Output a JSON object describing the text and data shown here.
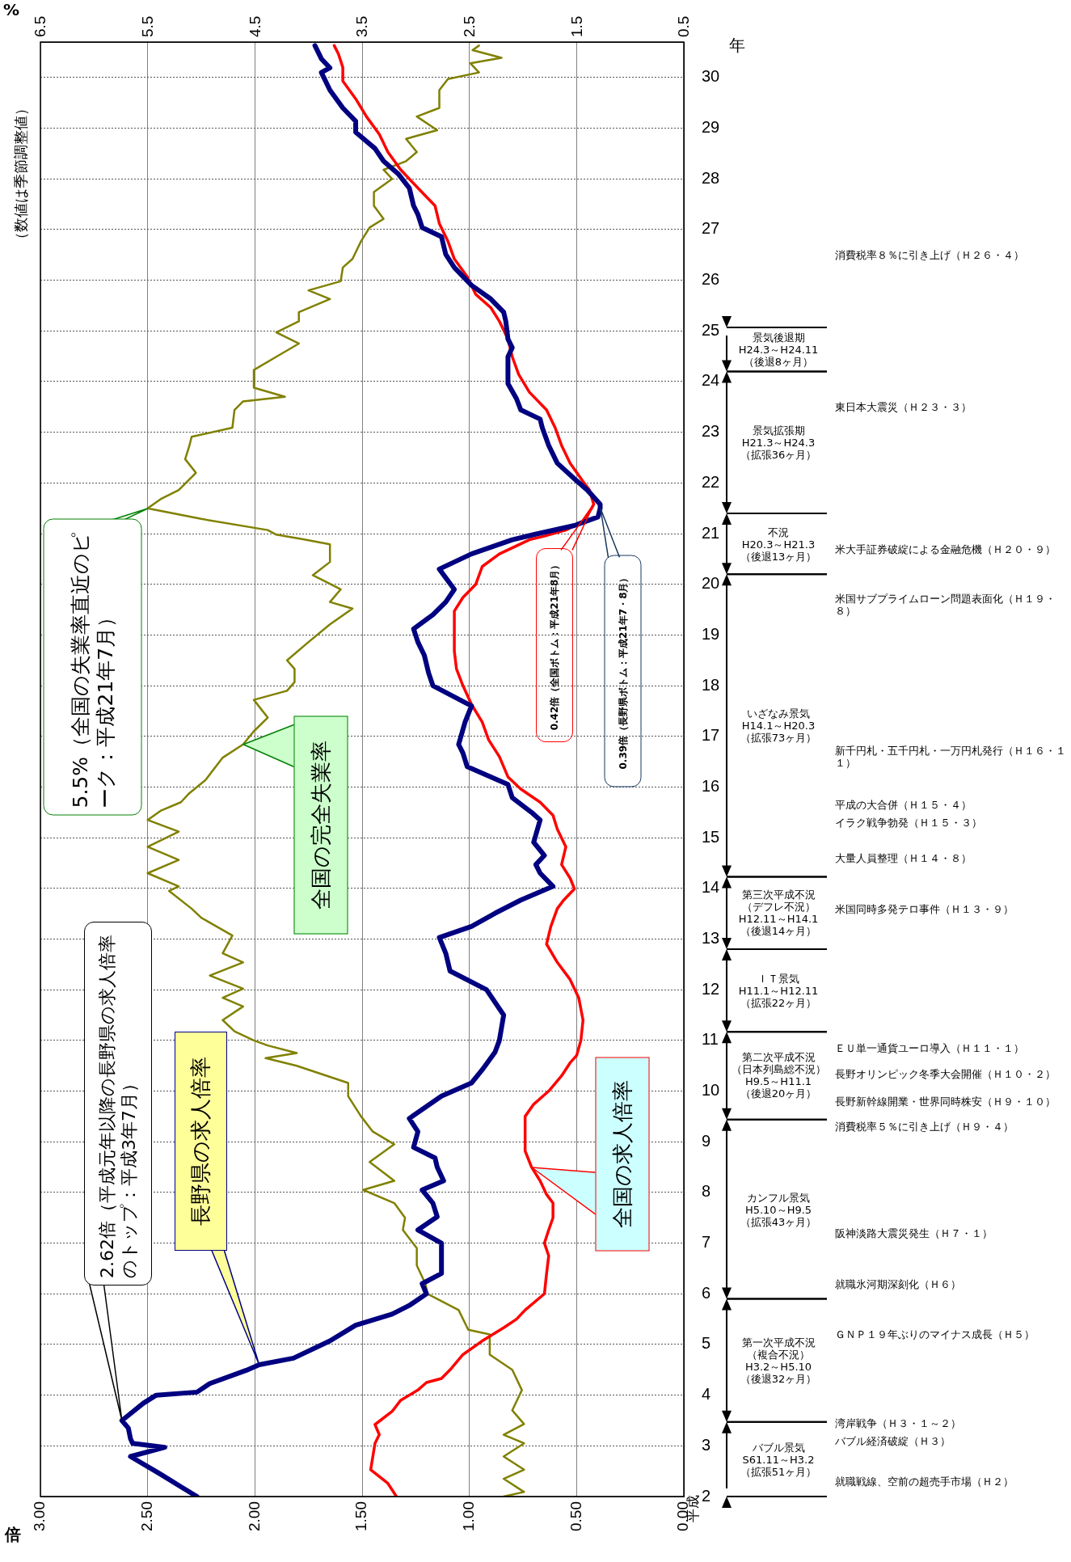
{
  "chart_data": {
    "type": "line",
    "xlabel": "倍",
    "x2label": "%",
    "ylabel": "年",
    "xlim": [
      3,
      0
    ],
    "xticks": [
      {
        "value": 0,
        "label": "0.00"
      },
      {
        "value": 0.5,
        "label": "0.50"
      },
      {
        "value": 1,
        "label": "1.00"
      },
      {
        "value": 1.5,
        "label": "1.50"
      },
      {
        "value": 2,
        "label": "2.00"
      },
      {
        "value": 2.5,
        "label": "2.50"
      },
      {
        "value": 3,
        "label": "3.00"
      }
    ],
    "x2lim": [
      6.5,
      0.5
    ],
    "x2ticks": [
      0.5,
      1.5,
      2.5,
      3.5,
      4.5,
      5.5,
      6.5
    ],
    "ylim": [
      2,
      30.7
    ],
    "yticks": [
      2,
      3,
      4,
      5,
      6,
      7,
      8,
      9,
      10,
      11,
      12,
      13,
      14,
      15,
      16,
      17,
      18,
      19,
      20,
      21,
      22,
      23,
      24,
      25,
      26,
      27,
      28,
      29,
      30
    ],
    "grid": true,
    "series": [
      {
        "name": "長野県の求人倍率",
        "color": "#000080",
        "x": [
          2.27,
          2.34,
          2.44,
          2.58,
          2.42,
          2.57,
          2.58,
          2.59,
          2.62,
          2.52,
          2.46,
          2.27,
          2.21,
          2.04,
          1.98,
          1.82,
          1.65,
          1.53,
          1.36,
          1.28,
          1.2,
          1.22,
          1.13,
          1.13,
          1.24,
          1.15,
          1.17,
          1.22,
          1.12,
          1.15,
          1.16,
          1.26,
          1.24,
          1.28,
          1.13,
          0.99,
          0.94,
          0.88,
          0.86,
          0.84,
          0.92,
          1.09,
          1.11,
          1.14,
          0.99,
          0.88,
          0.76,
          0.61,
          0.67,
          0.69,
          0.65,
          0.7,
          0.67,
          0.71,
          0.8,
          0.82,
          1.01,
          1.03,
          1.05,
          1.02,
          0.99,
          1.17,
          1.19,
          1.21,
          1.24,
          1.26,
          1.17,
          1.11,
          1.07,
          1.14,
          0.99,
          0.8,
          0.7,
          0.51,
          0.4,
          0.39,
          0.39,
          0.45,
          0.51,
          0.59,
          0.63,
          0.66,
          0.67,
          0.76,
          0.78,
          0.82,
          0.82,
          0.8,
          0.82,
          0.83,
          0.84,
          0.9,
          0.99,
          1.07,
          1.11,
          1.13,
          1.22,
          1.24,
          1.26,
          1.28,
          1.33,
          1.4,
          1.44,
          1.53,
          1.53,
          1.59,
          1.65,
          1.69,
          1.65,
          1.69,
          1.72
        ],
        "values": [
          2.0,
          2.18,
          2.44,
          2.79,
          2.97,
          3.05,
          3.14,
          3.35,
          3.5,
          3.84,
          4.0,
          4.06,
          4.23,
          4.49,
          4.6,
          4.73,
          5.07,
          5.38,
          5.6,
          5.77,
          6.0,
          6.2,
          6.4,
          7.0,
          7.26,
          7.52,
          7.79,
          8.05,
          8.23,
          8.5,
          8.68,
          8.89,
          9.2,
          9.46,
          9.9,
          10.16,
          10.42,
          10.77,
          11.0,
          11.5,
          12.0,
          12.37,
          12.72,
          13.03,
          13.25,
          13.51,
          13.77,
          14.04,
          14.3,
          14.47,
          14.65,
          14.91,
          15.35,
          15.5,
          15.79,
          16.05,
          16.4,
          16.67,
          16.84,
          17.28,
          17.6,
          18.0,
          18.25,
          18.6,
          18.86,
          19.12,
          19.4,
          19.65,
          19.9,
          20.3,
          20.6,
          20.88,
          20.98,
          21.16,
          21.33,
          21.5,
          21.58,
          21.86,
          22.08,
          22.39,
          22.74,
          23.09,
          23.26,
          23.44,
          23.66,
          23.96,
          24.49,
          24.67,
          24.84,
          25.19,
          25.37,
          25.63,
          25.9,
          26.25,
          26.51,
          26.86,
          27.04,
          27.3,
          27.47,
          27.82,
          28.09,
          28.35,
          28.6,
          28.92,
          29.14,
          29.4,
          29.75,
          30.1,
          30.19,
          30.37,
          30.63
        ]
      },
      {
        "name": "全国の求人倍率",
        "color": "#ff0000",
        "x": [
          1.34,
          1.38,
          1.46,
          1.44,
          1.42,
          1.44,
          1.36,
          1.32,
          1.24,
          1.2,
          1.13,
          1.09,
          1.03,
          0.94,
          0.84,
          0.78,
          0.74,
          0.65,
          0.64,
          0.63,
          0.65,
          0.63,
          0.61,
          0.61,
          0.64,
          0.67,
          0.71,
          0.74,
          0.74,
          0.7,
          0.63,
          0.57,
          0.53,
          0.5,
          0.48,
          0.47,
          0.49,
          0.53,
          0.59,
          0.64,
          0.62,
          0.59,
          0.56,
          0.51,
          0.53,
          0.57,
          0.55,
          0.59,
          0.61,
          0.67,
          0.76,
          0.82,
          0.86,
          0.91,
          0.94,
          0.99,
          1.03,
          1.06,
          1.07,
          1.07,
          1.03,
          0.97,
          0.94,
          0.86,
          0.72,
          0.65,
          0.55,
          0.47,
          0.43,
          0.42,
          0.44,
          0.47,
          0.53,
          0.57,
          0.6,
          0.64,
          0.72,
          0.77,
          0.8,
          0.82,
          0.86,
          0.9,
          0.97,
          1.01,
          1.07,
          1.1,
          1.14,
          1.16,
          1.24,
          1.32,
          1.38,
          1.42,
          1.48,
          1.53,
          1.59,
          1.59,
          1.61,
          1.63
        ],
        "values": [
          2.0,
          2.26,
          2.53,
          3.05,
          3.22,
          3.42,
          3.68,
          3.9,
          4.1,
          4.25,
          4.33,
          4.5,
          4.8,
          5.07,
          5.33,
          5.5,
          5.68,
          6.0,
          6.4,
          6.75,
          7.0,
          7.26,
          7.5,
          7.79,
          7.96,
          8.23,
          8.5,
          8.82,
          9.5,
          9.74,
          10.0,
          10.3,
          10.56,
          10.7,
          11.0,
          11.4,
          11.84,
          12.2,
          12.54,
          12.9,
          13.25,
          13.6,
          13.77,
          13.99,
          14.2,
          14.47,
          14.82,
          15.17,
          15.44,
          15.7,
          15.96,
          16.2,
          16.6,
          16.93,
          17.28,
          17.63,
          18.0,
          18.33,
          18.68,
          19.47,
          19.74,
          20.0,
          20.35,
          20.6,
          20.88,
          20.95,
          21.07,
          21.25,
          21.5,
          21.58,
          21.86,
          22.03,
          22.39,
          22.74,
          23.09,
          23.44,
          23.79,
          24.14,
          24.49,
          24.84,
          25.19,
          25.46,
          25.72,
          26.07,
          26.42,
          26.77,
          27.12,
          27.47,
          27.82,
          28.18,
          28.53,
          28.88,
          29.23,
          29.58,
          29.93,
          30.2,
          30.46,
          30.63
        ]
      },
      {
        "name": "全国の完全失業率",
        "color": "#808000",
        "axis": "x2",
        "x": [
          2.18,
          1.99,
          2.18,
          1.99,
          2.18,
          1.99,
          2.18,
          1.99,
          2.1,
          2.01,
          2.1,
          2.31,
          2.31,
          2.51,
          2.6,
          2.89,
          2.91,
          2.99,
          2.99,
          3.12,
          3.1,
          3.2,
          3.49,
          3.2,
          3.43,
          3.2,
          3.4,
          3.51,
          3.63,
          3.63,
          4.11,
          4.4,
          4.11,
          4.38,
          4.51,
          4.69,
          4.8,
          4.61,
          4.8,
          4.61,
          4.92,
          4.61,
          4.8,
          4.71,
          5.0,
          5.09,
          5.3,
          5.21,
          5.5,
          5.21,
          5.5,
          5.21,
          5.5,
          5.38,
          5.19,
          5.11,
          4.96,
          4.8,
          4.61,
          4.51,
          4.38,
          4.51,
          4.2,
          4.13,
          4.13,
          4.2,
          4.0,
          3.8,
          3.59,
          3.8,
          3.7,
          3.96,
          3.8,
          3.8,
          4.05,
          4.3,
          4.38,
          5.0,
          5.5,
          5.38,
          5.21,
          5.05,
          5.15,
          5.11,
          5.09,
          4.71,
          4.69,
          4.61,
          4.22,
          4.51,
          4.51,
          4.3,
          4.09,
          4.3,
          4.09,
          4.09,
          3.8,
          4.0,
          3.7,
          3.68,
          3.59,
          3.51,
          3.43,
          3.3,
          3.39,
          3.39,
          3.22,
          3.3,
          3.09,
          2.99,
          3.09,
          2.8,
          2.99,
          2.78,
          2.78,
          2.7,
          2.41,
          2.49,
          2.2,
          2.47,
          2.41
        ],
        "values": [
          2.0,
          2.09,
          2.35,
          2.53,
          2.79,
          3.05,
          3.22,
          3.43,
          3.7,
          4.1,
          4.5,
          4.8,
          5.2,
          5.29,
          5.68,
          6.0,
          6.2,
          6.56,
          6.9,
          7.26,
          7.5,
          7.79,
          8.05,
          8.23,
          8.6,
          8.95,
          9.2,
          9.5,
          9.9,
          10.16,
          10.5,
          10.65,
          10.75,
          10.9,
          11.0,
          11.18,
          11.4,
          11.67,
          11.84,
          12.02,
          12.28,
          12.54,
          12.72,
          13.07,
          13.42,
          13.6,
          13.95,
          14.04,
          14.3,
          14.56,
          14.82,
          15.12,
          15.35,
          15.53,
          15.7,
          15.88,
          16.14,
          16.58,
          16.84,
          17.1,
          17.37,
          17.72,
          17.9,
          18.07,
          18.33,
          18.5,
          18.86,
          19.21,
          19.52,
          19.65,
          19.9,
          20.18,
          20.44,
          20.79,
          20.89,
          20.98,
          21.07,
          21.29,
          21.5,
          21.68,
          21.86,
          22.2,
          22.47,
          22.74,
          22.91,
          23.09,
          23.44,
          23.61,
          23.7,
          23.88,
          24.23,
          24.49,
          24.75,
          24.97,
          25.19,
          25.37,
          25.63,
          25.8,
          25.98,
          26.25,
          26.42,
          26.77,
          27.04,
          27.21,
          27.47,
          27.74,
          28.0,
          28.18,
          28.35,
          28.53,
          28.79,
          28.96,
          29.23,
          29.4,
          29.75,
          29.97,
          30.1,
          30.28,
          30.39,
          30.54,
          30.63
        ]
      }
    ],
    "annotations": [
      "（数値は季節調整値）",
      "平成",
      "5.5%（全国の失業率直近のピーク：平成21年7月）",
      "0.42倍（全国ボトム：平成21年8月）",
      "0.39倍（長野県ボトム：平成21年7・8月）",
      "バブル景気\nS61.11～H3.2\n（拡張51ヶ月）",
      "第一次平成不況（複合不況）\nH3.2～H5.10\n（後退32ヶ月）",
      "カンフル景気\nH5.10～H9.5\n（拡張43ヶ月）",
      "第二次平成不況（日本列島総不況）\nH9.5～H11.1\n（後退20ヶ月）",
      "ＩＴ景気\nH11.1～H12.11\n（拡張22ヶ月）",
      "第三次平成不況（デフレ不況）\nH12.11～H14.1（後退14ヶ月）",
      "いざなみ景気\nH14.1～H20.3\n（拡張73ヶ月）",
      "不況\nH20.3～H21.3\n（後退13ヶ月）",
      "景気拡張期\nH21.3～H24.3\n（拡張36ヶ月）",
      "景気後退期\nH24.3～H24.11\n（後退8ヶ月）",
      "就職戦線、空前の超売手市場（Ｈ２）",
      "バブル経済破綻（Ｈ３）",
      "湾岸戦争（Ｈ３・１～２）",
      "ＧＮＰ１９年ぶりのマイナス成長（Ｈ５）",
      "就職氷河期深刻化（Ｈ６）",
      "阪神淡路大震災発生（Ｈ７・１）",
      "消費税率５％に引き上げ（Ｈ９・４）",
      "長野新幹線開業・世界同時株安（Ｈ９・１０）",
      "長野オリンピック冬季大会開催（Ｈ１０・２）",
      "ＥＵ単一通貨ユーロ導入（Ｈ１１・１）",
      "米国同時多発テロ事件（Ｈ１３・９）",
      "大量人員整理（Ｈ１４・８）",
      "イラク戦争勃発（Ｈ１５・３）",
      "平成の大合併（Ｈ１５・４）",
      "新千円札・五千円札・一万円札発行（Ｈ１６・１１）",
      "米国サブプライムローン問題表面化（Ｈ１９・８）",
      "米大手証券破綻による金融危機（Ｈ２０・９）",
      "東日本大震災（Ｈ２３・３）",
      "消費税率８％に引き上げ（Ｈ２６・４）",
      {
        "text": "2.62倍（平成元年以降の長野県の求人倍率のトップ：平成3年7月）",
        "x": 2.62,
        "y": 3.5
      }
    ]
  }
}
